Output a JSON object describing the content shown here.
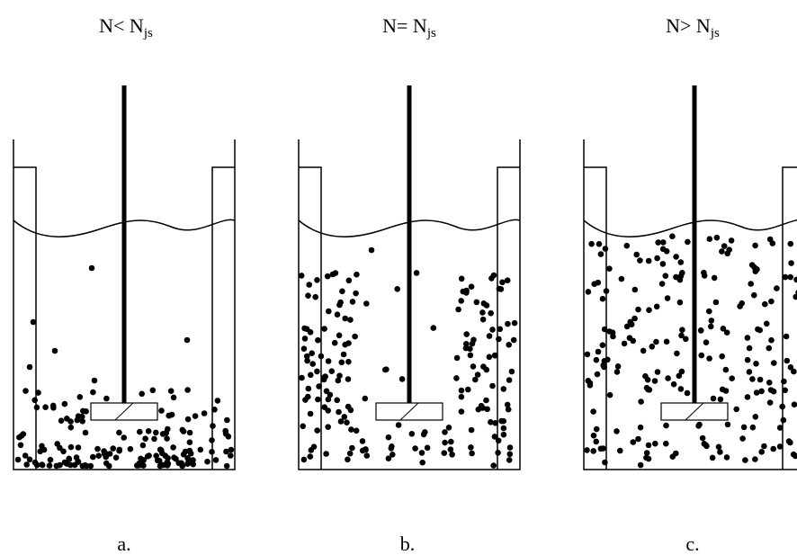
{
  "panels": [
    {
      "title_main": "N< N",
      "title_sub": "js",
      "label": "a."
    },
    {
      "title_main": "N= N",
      "title_sub": "js",
      "label": "b."
    },
    {
      "title_main": "N> N",
      "title_sub": "js",
      "label": "c."
    }
  ]
}
